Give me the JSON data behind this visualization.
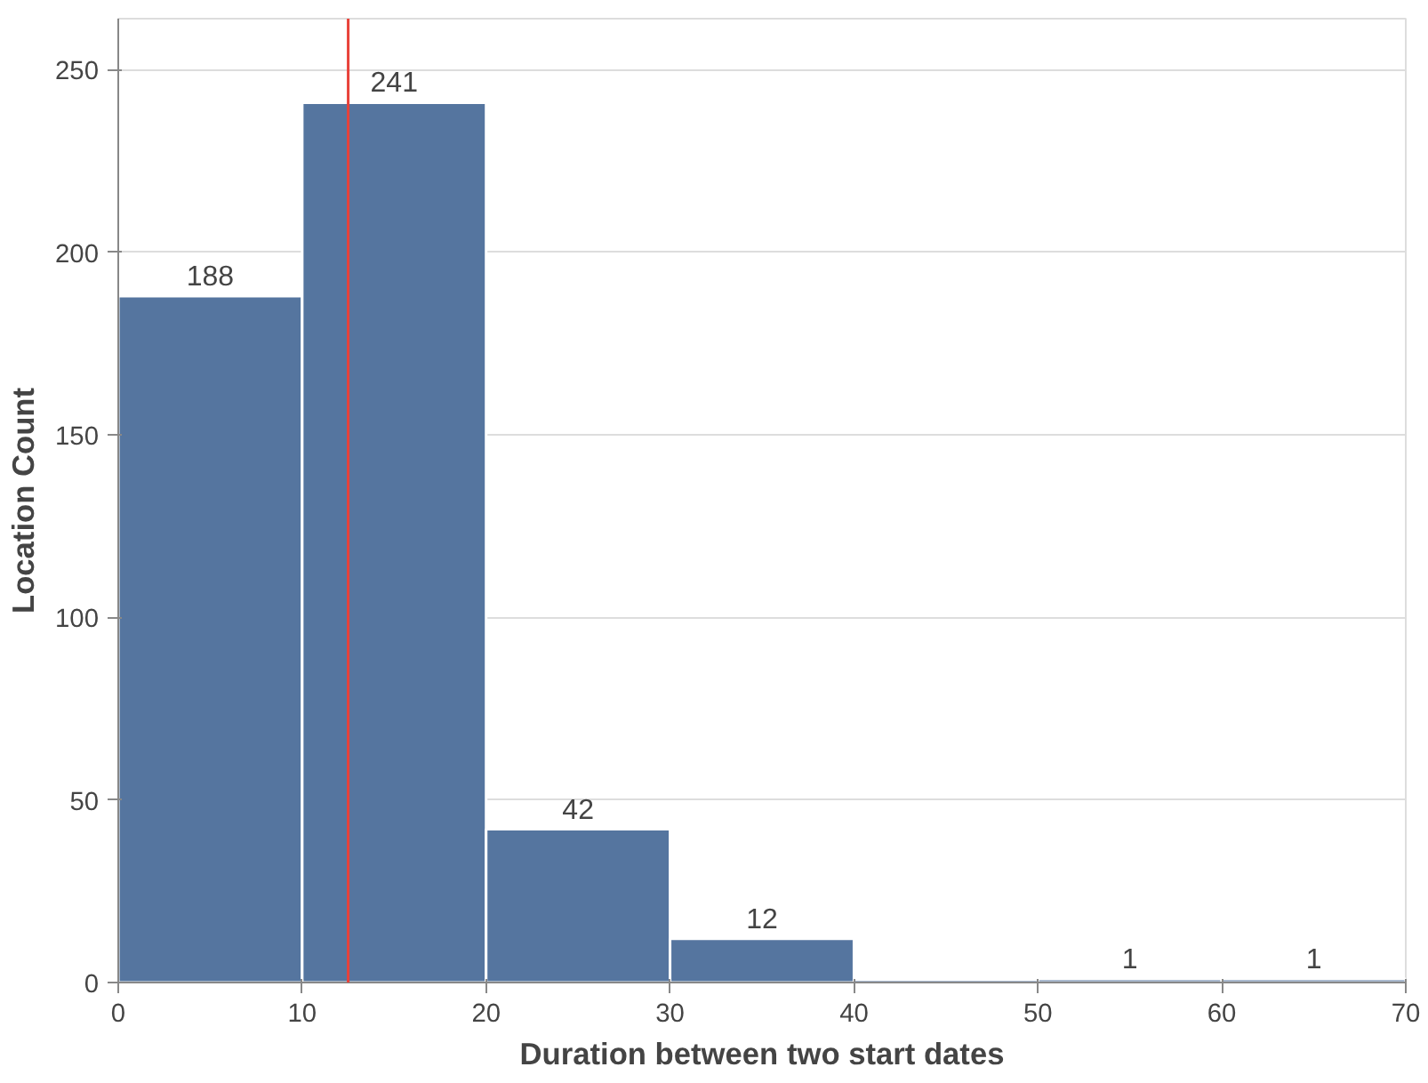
{
  "chart_data": {
    "type": "histogram",
    "xlabel": "Duration between two start dates",
    "ylabel": "Location Count",
    "bins": [
      0,
      10,
      20,
      30,
      40,
      50,
      60,
      70
    ],
    "values": [
      188,
      241,
      42,
      12,
      0,
      1,
      1
    ],
    "value_labels": [
      "188",
      "241",
      "42",
      "12",
      null,
      "1",
      "1"
    ],
    "color": "#55759f",
    "xlim": [
      0,
      70
    ],
    "xticks": [
      0,
      10,
      20,
      30,
      40,
      50,
      60,
      70
    ],
    "ylim": [
      0,
      264
    ],
    "yticks": [
      0,
      50,
      100,
      150,
      200,
      250
    ],
    "grid": "y",
    "ref_lines": [
      {
        "axis": "x",
        "value": 12.5,
        "label": null,
        "color": "#e8413a"
      }
    ]
  }
}
